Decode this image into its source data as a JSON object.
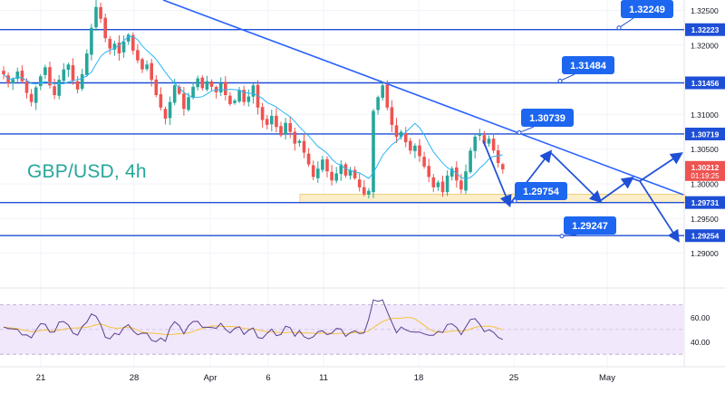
{
  "chart_data": {
    "type": "candlestick",
    "title": "GBP/USD, 4h",
    "colors": {
      "up": "#26a69a",
      "down": "#ef5350",
      "ma": "#29b6f6",
      "level_line": "#1e4fd6",
      "label_bg": "#1d66f0",
      "trendline": "#2962ff",
      "rsi": "#5b3f8f",
      "rsi_ma": "#f5c33b",
      "rsi_band": "#f1e8fb",
      "price_tag": "#ef5350",
      "support_zone": "#fbeec8"
    },
    "price_axis": {
      "ticks": [
        "1.32500",
        "1.32000",
        "1.31500",
        "1.31000",
        "1.30500",
        "1.30000",
        "1.29500",
        "1.29000"
      ],
      "range": [
        1.285,
        1.3265
      ]
    },
    "time_axis": {
      "ticks": [
        "21",
        "28",
        "Apr",
        "6",
        "11",
        "18",
        "25",
        "May"
      ]
    },
    "levels": [
      "1.32223",
      "1.31456",
      "1.30719",
      "1.29731",
      "1.29254"
    ],
    "level_values": [
      1.32223,
      1.31456,
      1.30719,
      1.29731,
      1.29254
    ],
    "callouts": [
      {
        "text": "1.32249",
        "value": 1.32249
      },
      {
        "text": "1.31484",
        "value": 1.31484
      },
      {
        "text": "1.30739",
        "value": 1.30739
      },
      {
        "text": "1.29754",
        "value": 1.29754
      },
      {
        "text": "1.29247",
        "value": 1.29247
      }
    ],
    "current_price": {
      "price": "1.30212",
      "countdown": "01:19:25",
      "value": 1.30212
    },
    "rsi": {
      "ticks": [
        "60.00",
        "40.00"
      ],
      "range": [
        25,
        80
      ],
      "overbought": 70,
      "oversold": 30
    },
    "closes": [
      1.3158,
      1.3145,
      1.3151,
      1.3162,
      1.3148,
      1.3131,
      1.3118,
      1.3139,
      1.3155,
      1.3168,
      1.3142,
      1.3128,
      1.315,
      1.3165,
      1.3172,
      1.3149,
      1.3136,
      1.3158,
      1.3188,
      1.3225,
      1.3255,
      1.3238,
      1.321,
      1.3195,
      1.3202,
      1.3188,
      1.3205,
      1.3215,
      1.3192,
      1.3178,
      1.3165,
      1.3172,
      1.315,
      1.3128,
      1.311,
      1.3094,
      1.3118,
      1.3142,
      1.313,
      1.3108,
      1.3125,
      1.314,
      1.3152,
      1.3138,
      1.3148,
      1.314,
      1.3132,
      1.3145,
      1.3128,
      1.3115,
      1.312,
      1.3135,
      1.3118,
      1.3126,
      1.3142,
      1.311,
      1.3092,
      1.3085,
      1.3098,
      1.3082,
      1.307,
      1.3088,
      1.3075,
      1.3058,
      1.3062,
      1.3045,
      1.3028,
      1.301,
      1.3022,
      1.3035,
      1.3018,
      1.3005,
      1.3015,
      1.3028,
      1.3012,
      1.302,
      1.3008,
      1.2995,
      1.2985,
      1.299,
      1.3105,
      1.3125,
      1.3142,
      1.311,
      1.3085,
      1.3068,
      1.3075,
      1.306,
      1.3048,
      1.3055,
      1.304,
      1.3025,
      1.301,
      1.2995,
      1.3002,
      1.2988,
      1.3012,
      1.3022,
      1.3005,
      1.2992,
      1.3018,
      1.3048,
      1.3068,
      1.3072,
      1.3058,
      1.3065,
      1.3048,
      1.303,
      1.3021
    ]
  }
}
